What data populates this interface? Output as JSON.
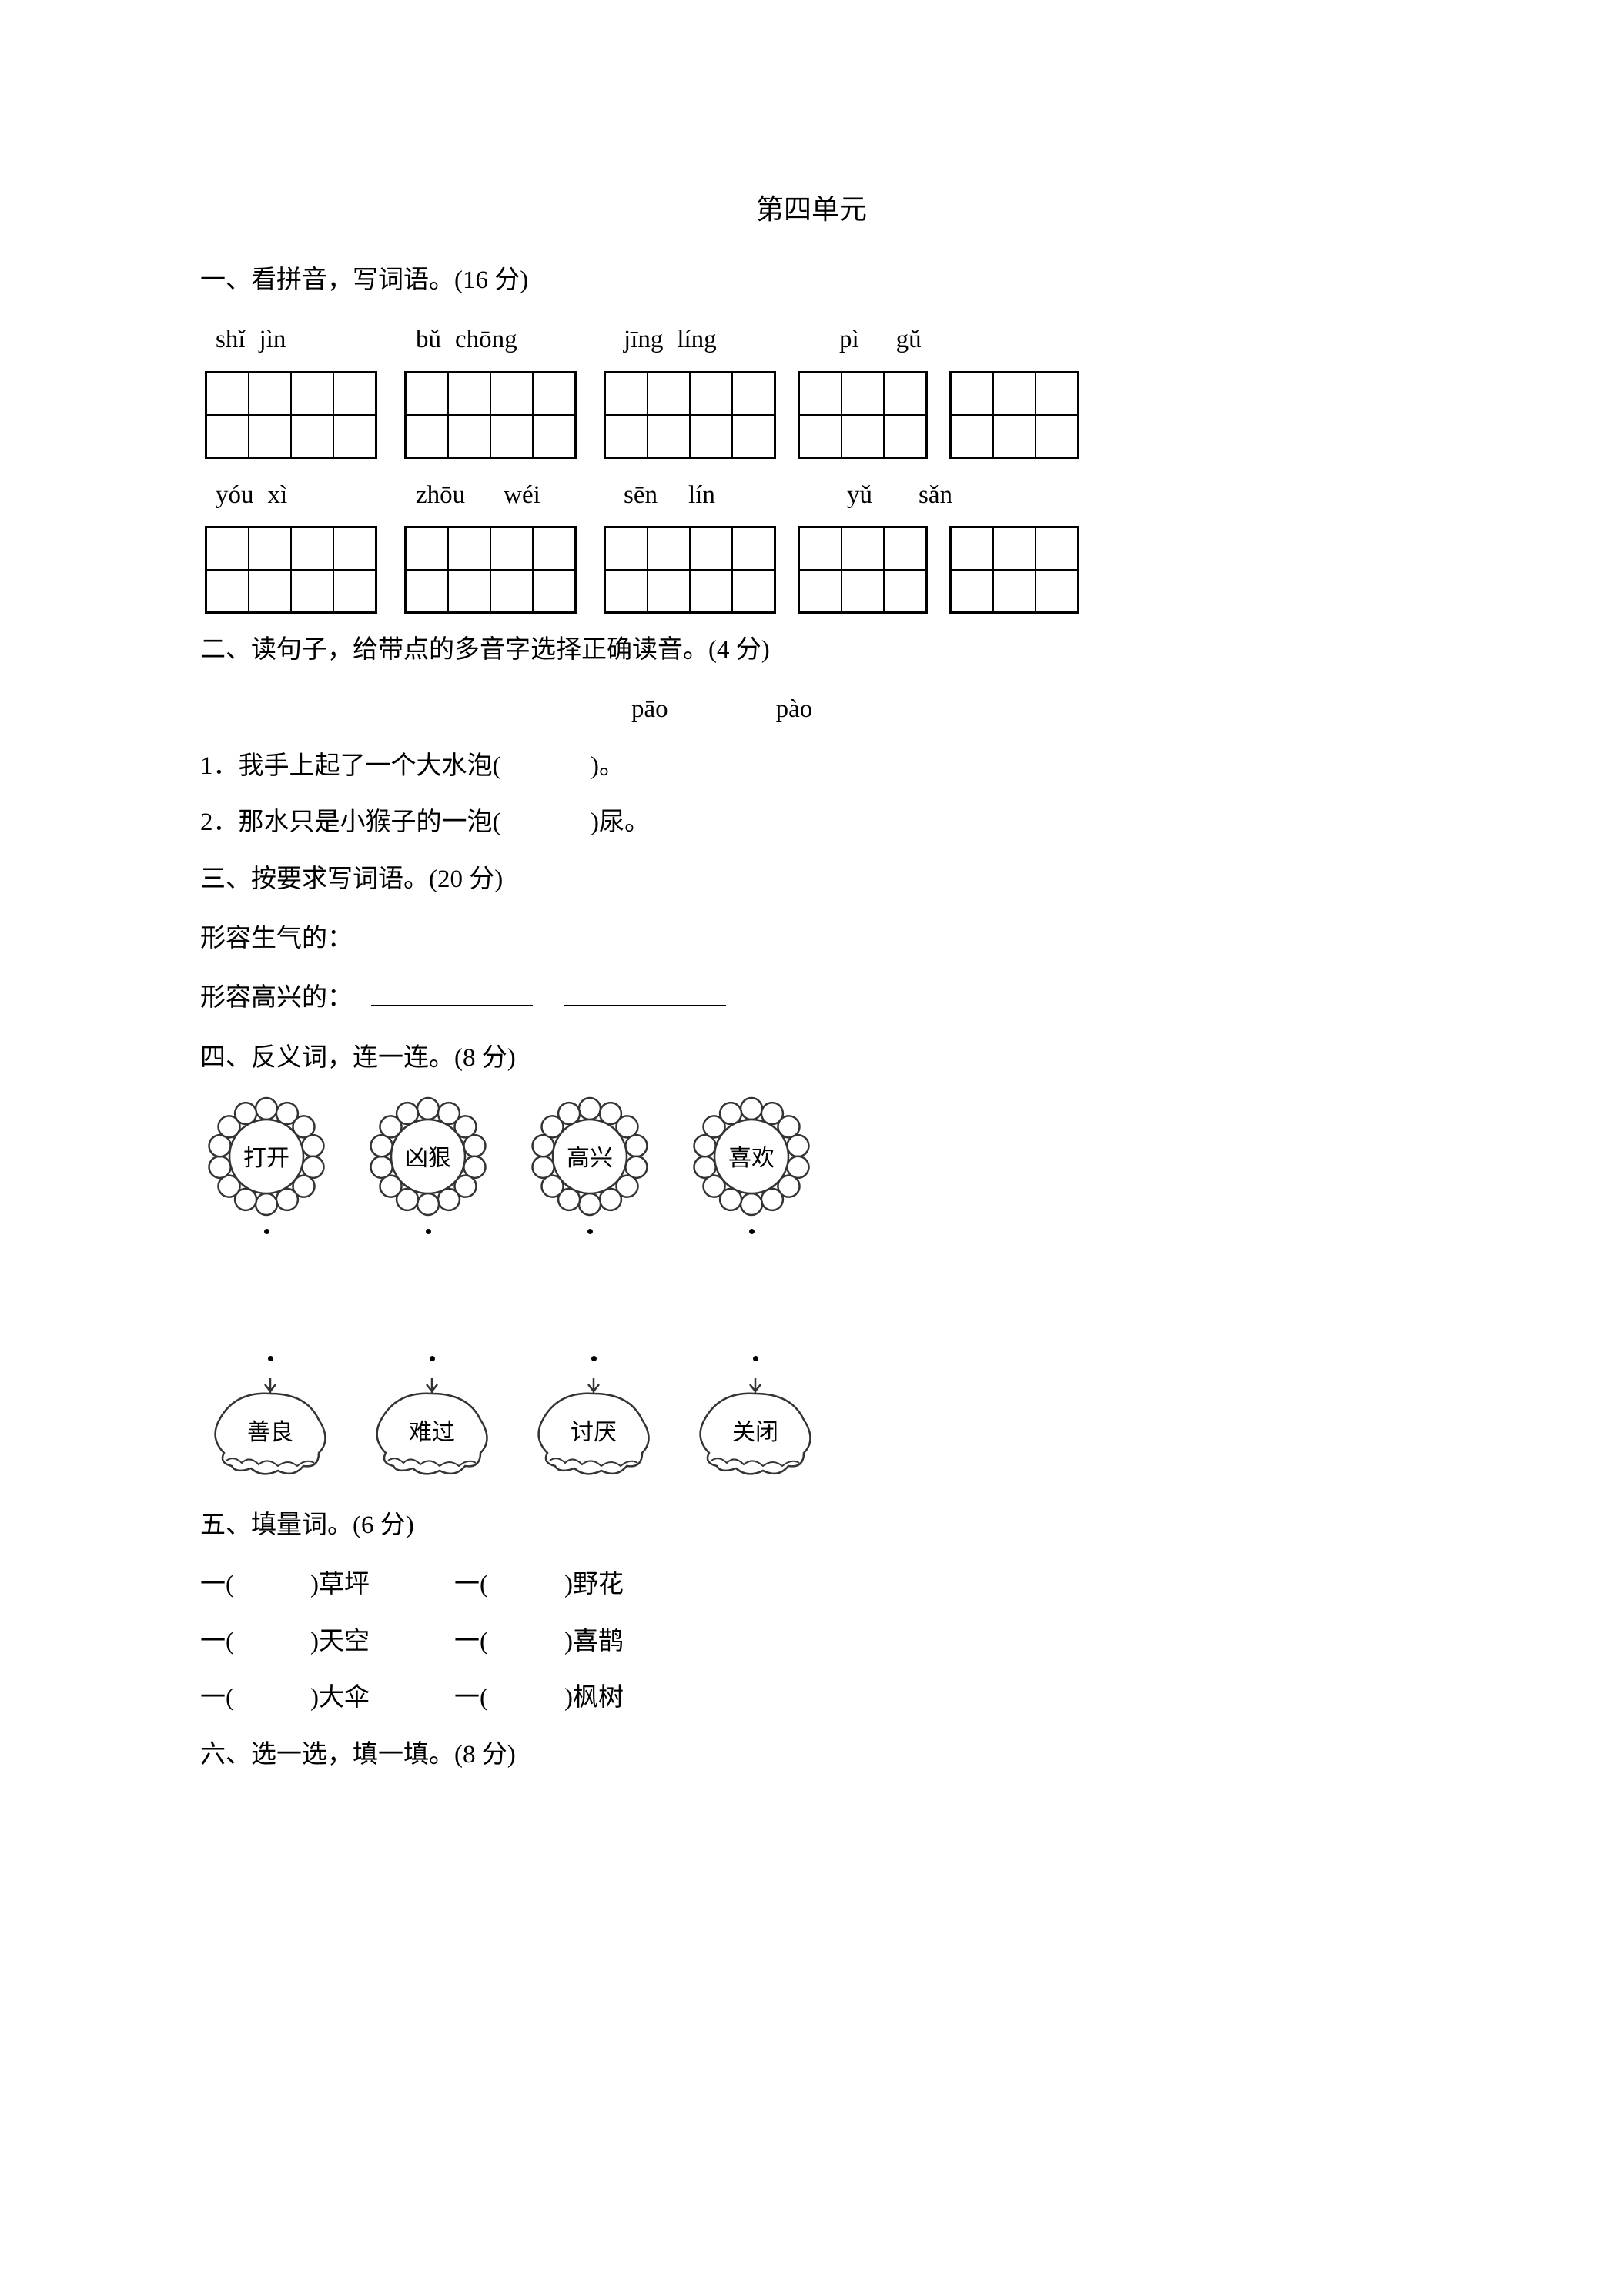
{
  "title": "第四单元",
  "s1": {
    "heading": "一、看拼音，写词语。(16 分)",
    "row1": [
      [
        "shǐ",
        "jìn"
      ],
      [
        "bǔ",
        "chōng"
      ],
      [
        "jīng",
        "líng"
      ],
      [
        "pì",
        "gǔ"
      ]
    ],
    "row2": [
      [
        "yóu",
        "xì"
      ],
      [
        "zhōu",
        "wéi"
      ],
      [
        "sēn",
        "lín"
      ],
      [
        "yǔ",
        "sǎn"
      ]
    ]
  },
  "s2": {
    "heading": "二、读句子，给带点的多音字选择正确读音。(4 分)",
    "opt1": "pāo",
    "opt2": "pào",
    "line1_a": "1．我手上起了一个大水泡(",
    "line1_b": ")。",
    "line2_a": "2．那水只是小猴子的一泡(",
    "line2_b": ")尿。"
  },
  "s3": {
    "heading": "三、按要求写词语。(20 分)",
    "line1": "形容生气的：",
    "line2": "形容高兴的："
  },
  "s4": {
    "heading": "四、反义词，连一连。(8 分)",
    "top": [
      "打开",
      "凶狠",
      "高兴",
      "喜欢"
    ],
    "bottom": [
      "善良",
      "难过",
      "讨厌",
      "关闭"
    ]
  },
  "s5": {
    "heading": "五、填量词。(6 分)",
    "rows": [
      [
        "草坪",
        "野花"
      ],
      [
        "天空",
        "喜鹊"
      ],
      [
        "大伞",
        "枫树"
      ]
    ]
  },
  "s6": {
    "heading": "六、选一选，填一填。(8 分)"
  },
  "style": {
    "stroke": "#333333",
    "fill": "#ffffff"
  }
}
